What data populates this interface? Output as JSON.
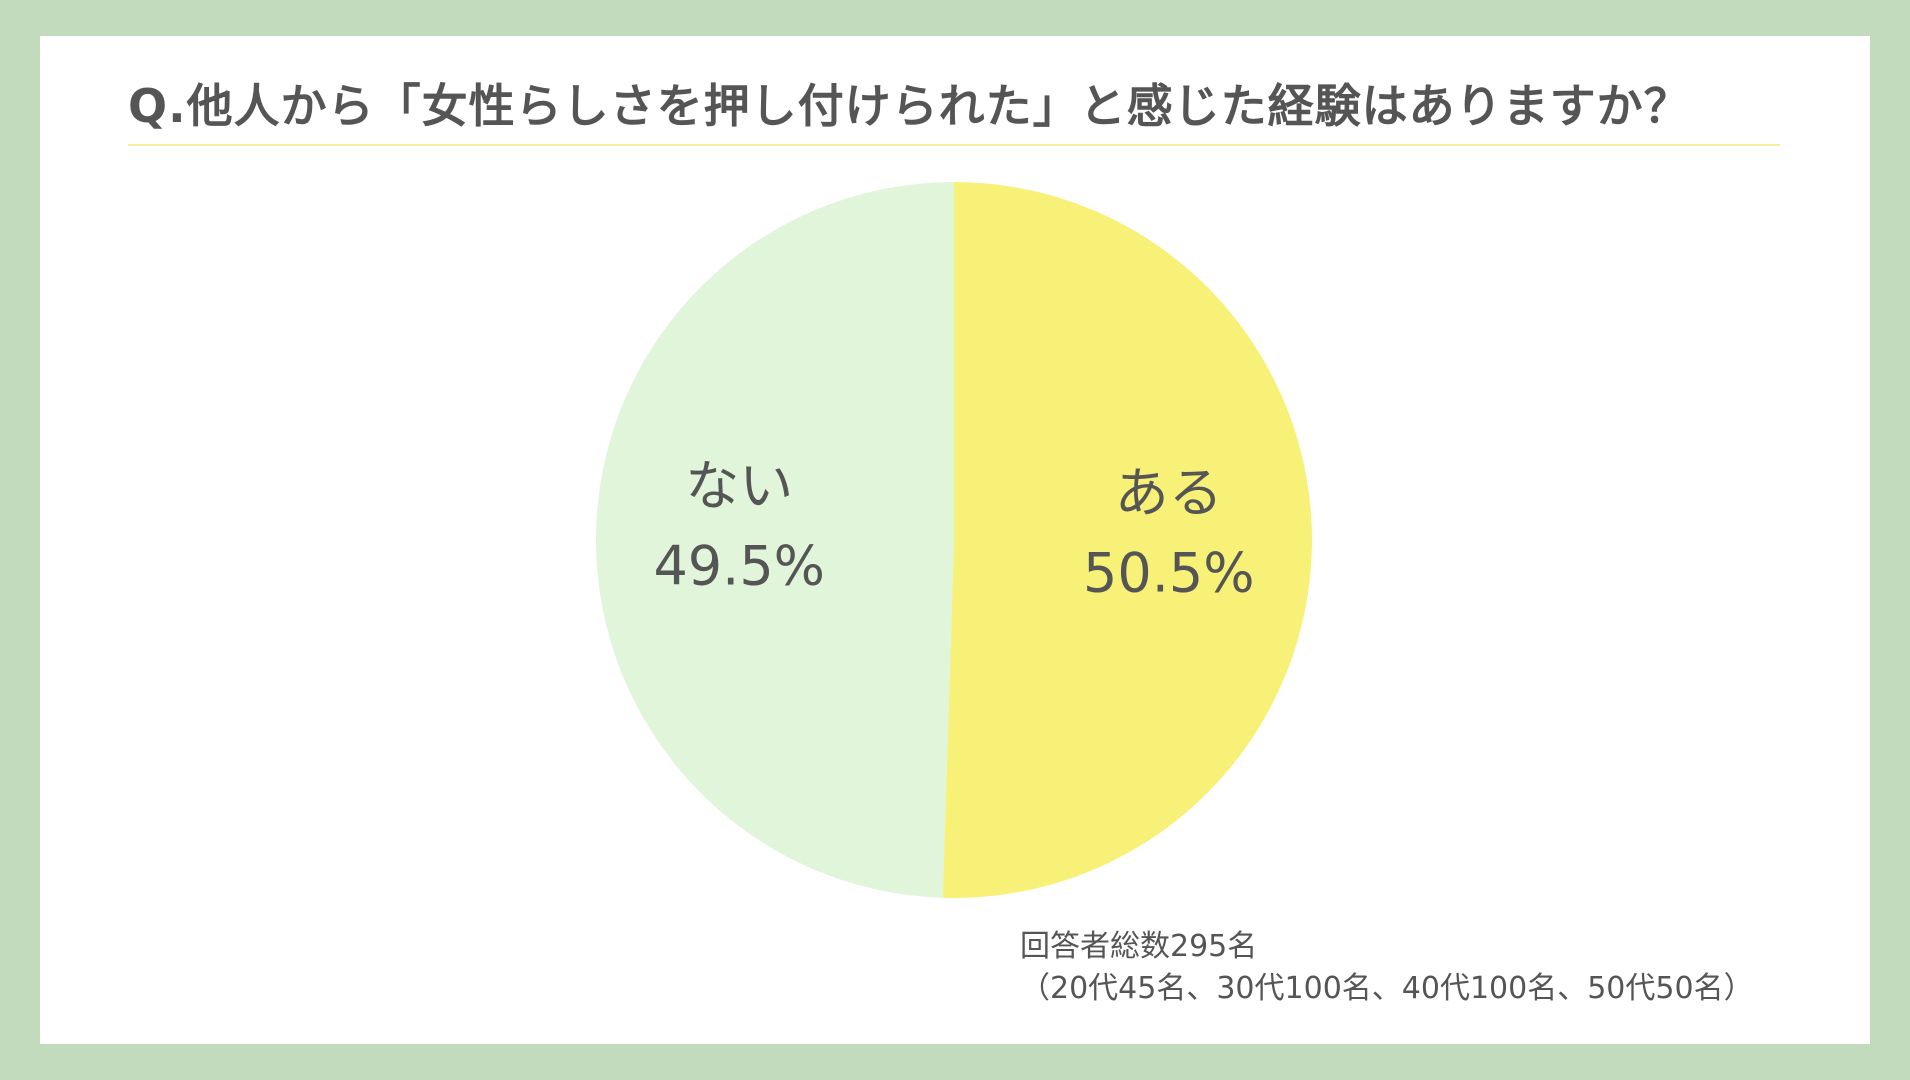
{
  "chart_data": {
    "type": "pie",
    "title": "Q.他人から「女性らしさを押し付けられた」と感じた経験はありますか？",
    "slices": [
      {
        "label": "ある",
        "value": 50.5,
        "value_label": "50.5%",
        "color": "#f8f177"
      },
      {
        "label": "ない",
        "value": 49.5,
        "value_label": "49.5%",
        "color": "#e0f5da"
      }
    ],
    "start": "top",
    "direction": "clockwise",
    "note": {
      "line1": "回答者総数295名",
      "line2": "（20代45名、30代100名、40代100名、50代50名）"
    }
  },
  "colors": {
    "background_border": "#c3dbbd",
    "panel": "#ffffff",
    "title_rule": "#f4ee9e",
    "text": "#555555"
  }
}
